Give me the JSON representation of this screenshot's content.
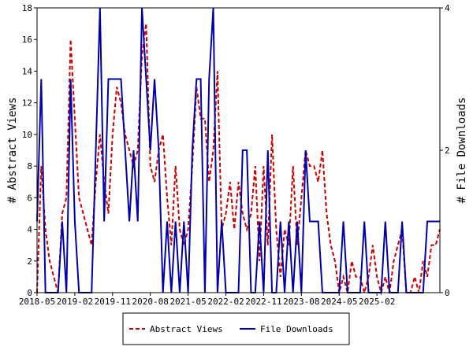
{
  "chart_data": {
    "type": "line",
    "title": "",
    "xlabel": "",
    "ylabel": "# Abstract Views",
    "y2label": "# File Downloads",
    "ylim": [
      0,
      18
    ],
    "y2lim": [
      0,
      4
    ],
    "yticks": [
      "0",
      "2",
      "4",
      "6",
      "8",
      "10",
      "12",
      "14",
      "16",
      "18"
    ],
    "y2ticks": [
      "0",
      "2",
      "4"
    ],
    "xticks": [
      "2018-05",
      "2019-02",
      "2019-11",
      "2020-08",
      "2021-05",
      "2022-02",
      "2022-11",
      "2023-08",
      "2024-05",
      "2025-02"
    ],
    "start": "2018-05",
    "grid": false,
    "legend_position": "bottom",
    "series": [
      {
        "name": "Abstract Views",
        "axis": "left",
        "color": "#cc0000",
        "style": "dashed",
        "values": [
          0,
          8,
          4,
          2,
          1,
          0,
          5,
          6,
          16,
          11,
          6,
          5,
          4,
          3,
          7,
          10,
          7,
          5,
          10,
          13,
          12,
          10,
          9,
          8,
          9,
          15,
          17,
          8,
          7,
          9,
          10,
          6,
          3,
          8,
          4,
          3,
          4,
          8,
          13,
          11,
          11,
          7,
          9,
          14,
          4,
          5,
          7,
          4,
          7,
          5,
          4,
          5,
          8,
          2,
          8,
          3,
          10,
          4,
          1,
          4,
          3,
          8,
          3,
          6,
          9,
          8,
          8,
          7,
          9,
          5,
          3,
          2,
          0,
          1,
          0,
          2,
          1,
          1,
          0,
          1,
          3,
          1,
          0,
          1,
          0,
          2,
          3,
          4,
          0,
          0,
          1,
          0,
          2,
          1,
          3,
          3,
          4
        ]
      },
      {
        "name": "File Downloads",
        "axis": "right",
        "color": "#0000aa",
        "style": "solid",
        "values": [
          1,
          3,
          0,
          0,
          0,
          0,
          1,
          0,
          3,
          1,
          0,
          0,
          0,
          0,
          2,
          4,
          1,
          3,
          3,
          3,
          3,
          2,
          1,
          2,
          1,
          4,
          3,
          2,
          3,
          2,
          0,
          1,
          0,
          1,
          0,
          1,
          0,
          2,
          3,
          3,
          0,
          3,
          4,
          0,
          1,
          0,
          0,
          0,
          0,
          2,
          2,
          0,
          0,
          1,
          0,
          2,
          0,
          0,
          1,
          0,
          1,
          0,
          1,
          0,
          2,
          1,
          1,
          1,
          0,
          0,
          0,
          0,
          0,
          1,
          0,
          0,
          0,
          0,
          1,
          0,
          0,
          0,
          0,
          1,
          0,
          0,
          0,
          1,
          0,
          0,
          0,
          0,
          0,
          1,
          1,
          1,
          1
        ]
      }
    ]
  }
}
